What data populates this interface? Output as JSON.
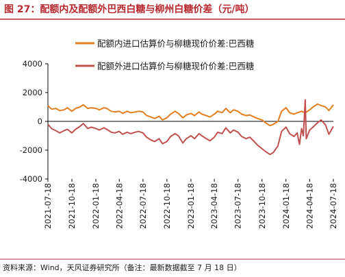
{
  "figure_title": "图 27：配额内及配额外巴西白糖与柳州白糖价差（元/吨）",
  "source_note": "资料来源：Wind，天风证券研究所（备注：最新数据截至 7 月 18 日）",
  "colors": {
    "title": "#b8282e",
    "series_in_quota": "#e57e1e",
    "series_out_quota": "#c0504d",
    "axis": "#000000"
  },
  "chart_data": {
    "type": "line",
    "legend_placement": "top",
    "grid": false,
    "ylim": [
      -4000,
      4000
    ],
    "y_ticks": [
      "4000",
      "2000",
      "0",
      "-2000",
      "-4000"
    ],
    "x_range": [
      "2021-07-18",
      "2024-07-18"
    ],
    "x_ticks": [
      "2021-07-18",
      "2021-10-18",
      "2022-01-18",
      "2022-04-18",
      "2022-07-18",
      "2022-10-18",
      "2023-01-18",
      "2023-04-18",
      "2023-07-18",
      "2023-10-18",
      "2024-01-18",
      "2024-04-18",
      "2024-07-18"
    ],
    "series": [
      {
        "name": "配额内进口估算价与柳糖现价价差:巴西糖",
        "points": [
          [
            "2021-07-18",
            1100
          ],
          [
            "2021-08-01",
            850
          ],
          [
            "2021-08-18",
            900
          ],
          [
            "2021-09-01",
            750
          ],
          [
            "2021-09-18",
            800
          ],
          [
            "2021-10-01",
            950
          ],
          [
            "2021-10-18",
            700
          ],
          [
            "2021-11-01",
            900
          ],
          [
            "2021-11-18",
            1000
          ],
          [
            "2021-12-01",
            1150
          ],
          [
            "2021-12-18",
            900
          ],
          [
            "2022-01-01",
            950
          ],
          [
            "2022-01-18",
            900
          ],
          [
            "2022-02-01",
            800
          ],
          [
            "2022-02-18",
            950
          ],
          [
            "2022-03-01",
            900
          ],
          [
            "2022-03-18",
            700
          ],
          [
            "2022-04-01",
            650
          ],
          [
            "2022-04-18",
            700
          ],
          [
            "2022-05-01",
            550
          ],
          [
            "2022-05-18",
            700
          ],
          [
            "2022-06-01",
            600
          ],
          [
            "2022-06-18",
            650
          ],
          [
            "2022-07-01",
            700
          ],
          [
            "2022-07-18",
            650
          ],
          [
            "2022-08-01",
            400
          ],
          [
            "2022-08-18",
            300
          ],
          [
            "2022-09-01",
            200
          ],
          [
            "2022-09-18",
            350
          ],
          [
            "2022-10-01",
            100
          ],
          [
            "2022-10-18",
            250
          ],
          [
            "2022-11-01",
            500
          ],
          [
            "2022-11-18",
            700
          ],
          [
            "2022-12-01",
            550
          ],
          [
            "2022-12-18",
            250
          ],
          [
            "2023-01-01",
            450
          ],
          [
            "2023-01-18",
            550
          ],
          [
            "2023-02-01",
            400
          ],
          [
            "2023-02-18",
            650
          ],
          [
            "2023-03-01",
            500
          ],
          [
            "2023-03-18",
            400
          ],
          [
            "2023-04-01",
            300
          ],
          [
            "2023-04-18",
            500
          ],
          [
            "2023-05-01",
            700
          ],
          [
            "2023-05-18",
            600
          ],
          [
            "2023-06-01",
            900
          ],
          [
            "2023-06-18",
            600
          ],
          [
            "2023-07-01",
            800
          ],
          [
            "2023-07-18",
            700
          ],
          [
            "2023-08-01",
            500
          ],
          [
            "2023-08-18",
            400
          ],
          [
            "2023-09-01",
            450
          ],
          [
            "2023-09-18",
            300
          ],
          [
            "2023-10-01",
            200
          ],
          [
            "2023-10-18",
            100
          ],
          [
            "2023-11-01",
            -100
          ],
          [
            "2023-11-18",
            -300
          ],
          [
            "2023-12-01",
            -200
          ],
          [
            "2023-12-18",
            0
          ],
          [
            "2024-01-01",
            700
          ],
          [
            "2024-01-18",
            950
          ],
          [
            "2024-02-01",
            600
          ],
          [
            "2024-02-18",
            500
          ],
          [
            "2024-03-01",
            600
          ],
          [
            "2024-03-18",
            700
          ],
          [
            "2024-04-01",
            600
          ],
          [
            "2024-04-18",
            800
          ],
          [
            "2024-05-01",
            1000
          ],
          [
            "2024-05-18",
            1200
          ],
          [
            "2024-06-01",
            1100
          ],
          [
            "2024-06-18",
            1000
          ],
          [
            "2024-07-01",
            750
          ],
          [
            "2024-07-18",
            1150
          ]
        ]
      },
      {
        "name": "配额外进口估算价与柳糖现价价差:巴西糖",
        "points": [
          [
            "2021-07-18",
            -200
          ],
          [
            "2021-08-01",
            -500
          ],
          [
            "2021-08-18",
            -650
          ],
          [
            "2021-09-01",
            -800
          ],
          [
            "2021-09-18",
            -650
          ],
          [
            "2021-10-01",
            -550
          ],
          [
            "2021-10-18",
            -800
          ],
          [
            "2021-11-01",
            -550
          ],
          [
            "2021-11-18",
            -350
          ],
          [
            "2021-12-01",
            -150
          ],
          [
            "2021-12-18",
            -500
          ],
          [
            "2022-01-01",
            -400
          ],
          [
            "2022-01-18",
            -500
          ],
          [
            "2022-02-01",
            -600
          ],
          [
            "2022-02-18",
            -450
          ],
          [
            "2022-03-01",
            -550
          ],
          [
            "2022-03-18",
            -750
          ],
          [
            "2022-04-01",
            -800
          ],
          [
            "2022-04-18",
            -700
          ],
          [
            "2022-05-01",
            -900
          ],
          [
            "2022-05-18",
            -750
          ],
          [
            "2022-06-01",
            -850
          ],
          [
            "2022-06-18",
            -750
          ],
          [
            "2022-07-01",
            -700
          ],
          [
            "2022-07-18",
            -800
          ],
          [
            "2022-08-01",
            -1100
          ],
          [
            "2022-08-18",
            -1300
          ],
          [
            "2022-09-01",
            -1400
          ],
          [
            "2022-09-18",
            -1200
          ],
          [
            "2022-10-01",
            -1550
          ],
          [
            "2022-10-18",
            -1400
          ],
          [
            "2022-11-01",
            -1050
          ],
          [
            "2022-11-18",
            -850
          ],
          [
            "2022-12-01",
            -1000
          ],
          [
            "2022-12-18",
            -1500
          ],
          [
            "2023-01-01",
            -1200
          ],
          [
            "2023-01-18",
            -1000
          ],
          [
            "2023-02-01",
            -1200
          ],
          [
            "2023-02-18",
            -850
          ],
          [
            "2023-03-01",
            -1000
          ],
          [
            "2023-03-18",
            -1200
          ],
          [
            "2023-04-01",
            -1350
          ],
          [
            "2023-04-18",
            -1100
          ],
          [
            "2023-05-01",
            -750
          ],
          [
            "2023-05-18",
            -850
          ],
          [
            "2023-06-01",
            -450
          ],
          [
            "2023-06-18",
            -800
          ],
          [
            "2023-07-01",
            -600
          ],
          [
            "2023-07-18",
            -750
          ],
          [
            "2023-08-01",
            -1050
          ],
          [
            "2023-08-18",
            -1200
          ],
          [
            "2023-09-01",
            -1100
          ],
          [
            "2023-09-18",
            -1400
          ],
          [
            "2023-10-01",
            -1650
          ],
          [
            "2023-10-18",
            -1900
          ],
          [
            "2023-11-01",
            -2100
          ],
          [
            "2023-11-18",
            -2300
          ],
          [
            "2023-12-01",
            -2150
          ],
          [
            "2023-12-18",
            -1700
          ],
          [
            "2024-01-01",
            -700
          ],
          [
            "2024-01-18",
            -400
          ],
          [
            "2024-02-01",
            -850
          ],
          [
            "2024-02-18",
            -1050
          ],
          [
            "2024-03-01",
            -800
          ],
          [
            "2024-03-10",
            -1600
          ],
          [
            "2024-03-18",
            -500
          ],
          [
            "2024-03-25",
            -1000
          ],
          [
            "2024-04-01",
            1500
          ],
          [
            "2024-04-05",
            -1200
          ],
          [
            "2024-04-18",
            -600
          ],
          [
            "2024-05-01",
            -400
          ],
          [
            "2024-05-18",
            -100
          ],
          [
            "2024-06-01",
            100
          ],
          [
            "2024-06-18",
            -250
          ],
          [
            "2024-07-01",
            -900
          ],
          [
            "2024-07-18",
            -350
          ]
        ]
      }
    ]
  }
}
